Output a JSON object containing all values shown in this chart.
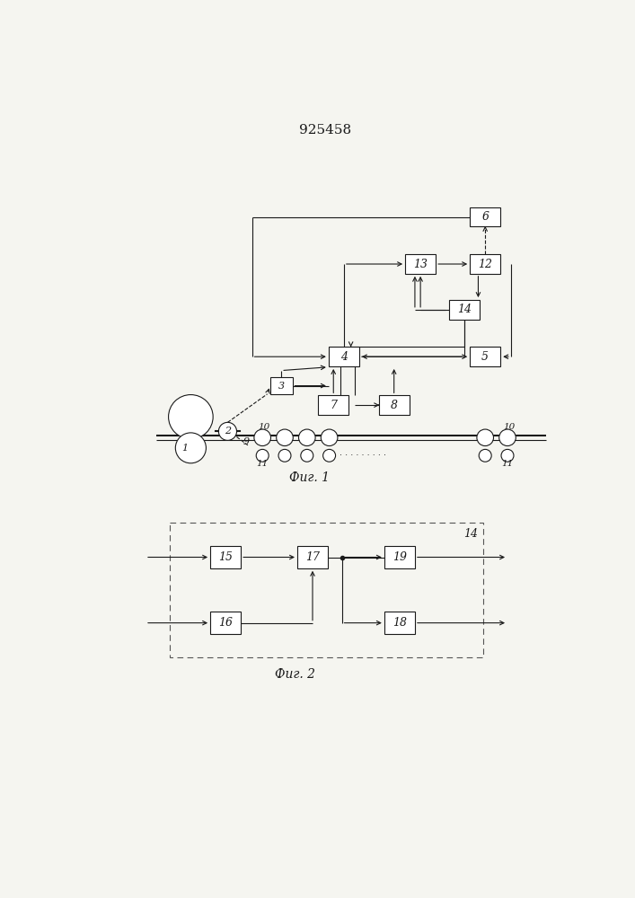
{
  "title": "925458",
  "fig1_caption": "Фиг. 1",
  "fig2_caption": "Фиг. 2",
  "bg_color": "#f5f5f0",
  "line_color": "#1a1a1a",
  "dashed_color": "#555555"
}
